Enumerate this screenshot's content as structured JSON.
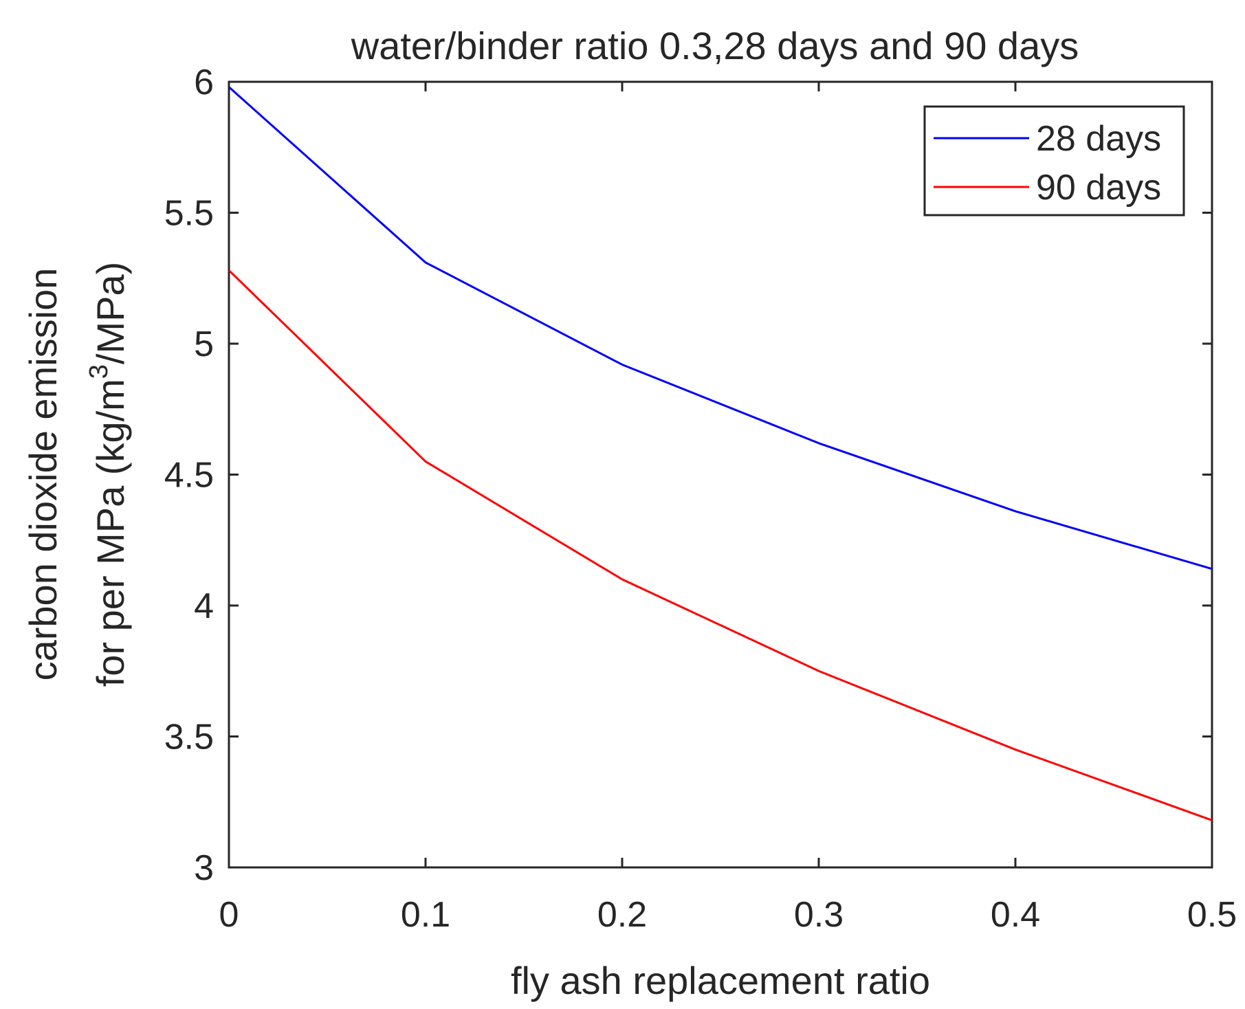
{
  "chart_data": {
    "type": "line",
    "title": "water/binder ratio 0.3,28 days and 90 days",
    "xlabel": "fly ash replacement ratio",
    "ylabel_line1": "carbon dioxide emission",
    "ylabel_line2_prefix": "for per MPa (kg/m",
    "ylabel_line2_superscript": "3",
    "ylabel_line2_suffix": "/MPa)",
    "x": [
      0,
      0.1,
      0.2,
      0.3,
      0.4,
      0.5
    ],
    "xlim": [
      0,
      0.5
    ],
    "ylim": [
      3,
      6
    ],
    "xticks": [
      0,
      0.1,
      0.2,
      0.3,
      0.4,
      0.5
    ],
    "xtick_labels": [
      "0",
      "0.1",
      "0.2",
      "0.3",
      "0.4",
      "0.5"
    ],
    "yticks": [
      3,
      3.5,
      4,
      4.5,
      5,
      5.5,
      6
    ],
    "ytick_labels": [
      "3",
      "3.5",
      "4",
      "4.5",
      "5",
      "5.5",
      "6"
    ],
    "grid": false,
    "legend_position": "top-right",
    "series": [
      {
        "name": "28 days",
        "color": "#0000ff",
        "values": [
          5.98,
          5.31,
          4.92,
          4.62,
          4.36,
          4.14
        ]
      },
      {
        "name": "90 days",
        "color": "#ff0000",
        "values": [
          5.28,
          4.55,
          4.1,
          3.75,
          3.45,
          3.18
        ]
      }
    ]
  }
}
